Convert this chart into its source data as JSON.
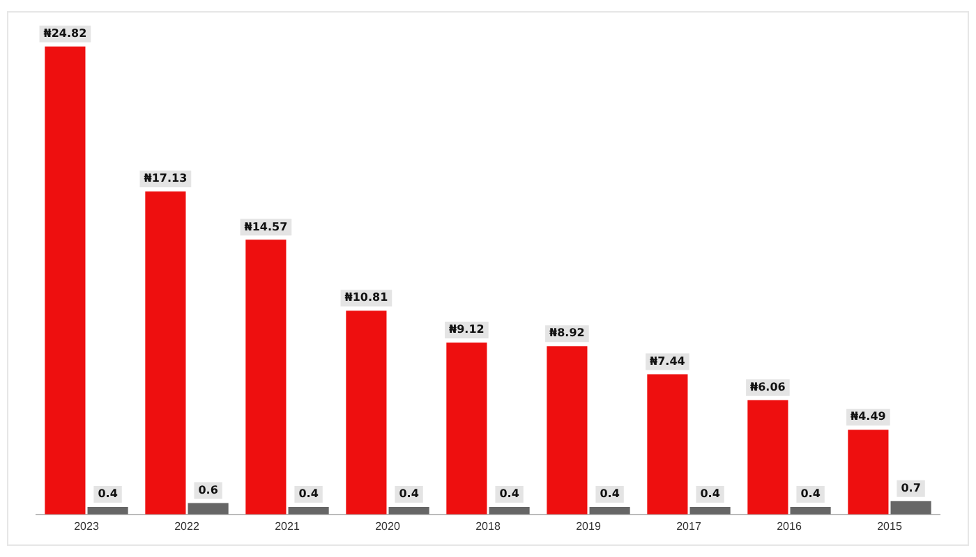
{
  "chart_data": {
    "type": "bar",
    "categories": [
      "2023",
      "2022",
      "2021",
      "2020",
      "2018",
      "2019",
      "2017",
      "2016",
      "2015"
    ],
    "series": [
      {
        "color": "#ee0f0f",
        "values": [
          24.82,
          17.13,
          14.57,
          10.81,
          9.12,
          8.92,
          7.44,
          6.06,
          4.49
        ],
        "value_labels": [
          "₦24.82",
          "₦17.13",
          "₦14.57",
          "₦10.81",
          "₦9.12",
          "₦8.92",
          "₦7.44",
          "₦6.06",
          "₦4.49"
        ]
      },
      {
        "color": "#666666",
        "values": [
          0.4,
          0.6,
          0.4,
          0.4,
          0.4,
          0.4,
          0.4,
          0.4,
          0.7
        ],
        "value_labels": [
          "0.4",
          "0.6",
          "0.4",
          "0.4",
          "0.4",
          "0.4",
          "0.4",
          "0.4",
          "0.7"
        ]
      }
    ],
    "grid": false,
    "legend": false
  }
}
